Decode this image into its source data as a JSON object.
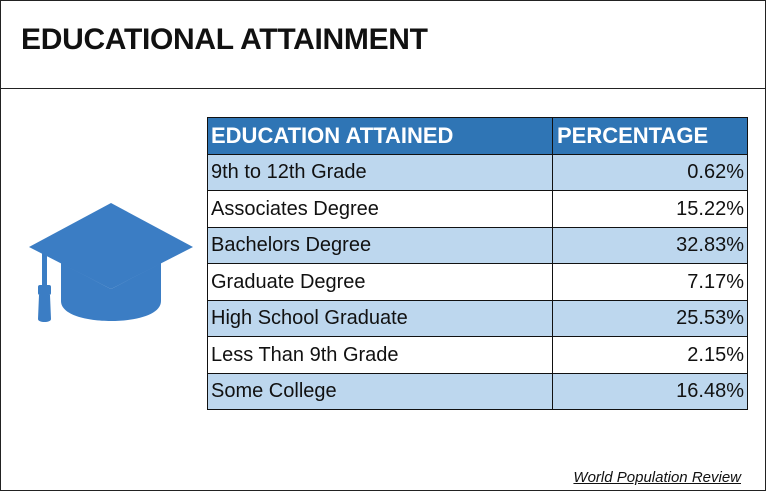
{
  "header": {
    "title": "EDUCATIONAL ATTAINMENT"
  },
  "table": {
    "columns": [
      "EDUCATION ATTAINED",
      "PERCENTAGE"
    ],
    "rows": [
      [
        "9th to 12th Grade",
        "0.62%"
      ],
      [
        "Associates Degree",
        "15.22%"
      ],
      [
        "Bachelors Degree",
        "32.83%"
      ],
      [
        "Graduate Degree",
        "7.17%"
      ],
      [
        "High School Graduate",
        "25.53%"
      ],
      [
        "Less Than 9th Grade",
        "2.15%"
      ],
      [
        "Some College",
        "16.48%"
      ]
    ]
  },
  "footer": {
    "source": "World Population Review"
  }
}
